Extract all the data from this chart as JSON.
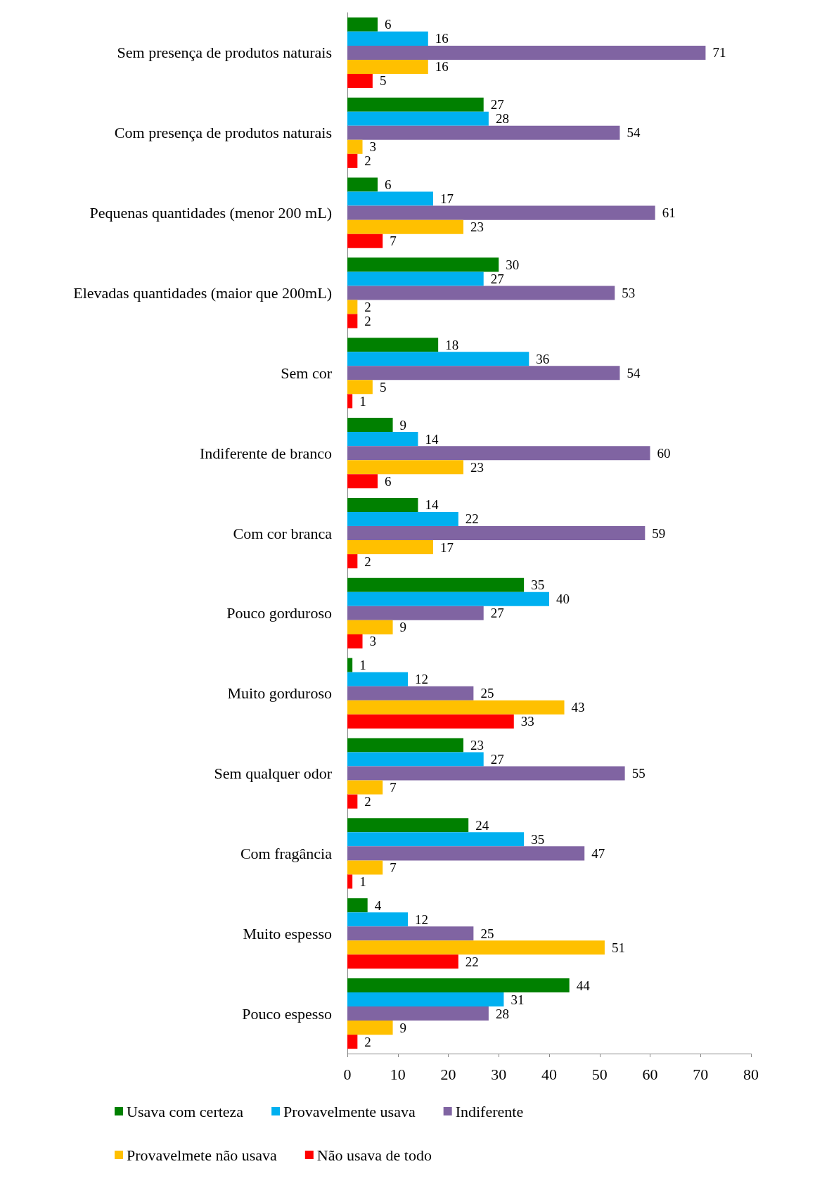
{
  "chart_data": {
    "type": "bar",
    "orientation": "horizontal",
    "categories": [
      "Sem presença de produtos naturais",
      "Com presença de produtos naturais",
      "Pequenas quantidades (menor 200 mL)",
      "Elevadas quantidades (maior que 200mL)",
      "Sem cor",
      "Indiferente de branco",
      "Com cor branca",
      "Pouco gorduroso",
      "Muito gorduroso",
      "Sem qualquer odor",
      "Com fragância",
      "Muito espesso",
      "Pouco espesso"
    ],
    "series": [
      {
        "name": "Usava com certeza",
        "color": "#008000",
        "values": [
          6,
          27,
          6,
          30,
          18,
          9,
          14,
          35,
          1,
          23,
          24,
          4,
          44
        ]
      },
      {
        "name": "Provavelmente usava",
        "color": "#00b0f0",
        "values": [
          16,
          28,
          17,
          27,
          36,
          14,
          22,
          40,
          12,
          27,
          35,
          12,
          31
        ]
      },
      {
        "name": "Indiferente",
        "color": "#8064a2",
        "values": [
          71,
          54,
          61,
          53,
          54,
          60,
          59,
          27,
          25,
          55,
          47,
          25,
          28
        ]
      },
      {
        "name": "Provavelmete não usava",
        "color": "#ffc000",
        "values": [
          16,
          3,
          23,
          2,
          5,
          23,
          17,
          9,
          43,
          7,
          7,
          51,
          9
        ]
      },
      {
        "name": "Não usava de todo",
        "color": "#ff0000",
        "values": [
          5,
          2,
          7,
          2,
          1,
          6,
          2,
          3,
          33,
          2,
          1,
          22,
          2
        ]
      }
    ],
    "xlim": [
      0,
      80
    ],
    "xticks": [
      0,
      10,
      20,
      30,
      40,
      50,
      60,
      70,
      80
    ],
    "data_labels": true,
    "grid": false,
    "legend": "bottom"
  }
}
